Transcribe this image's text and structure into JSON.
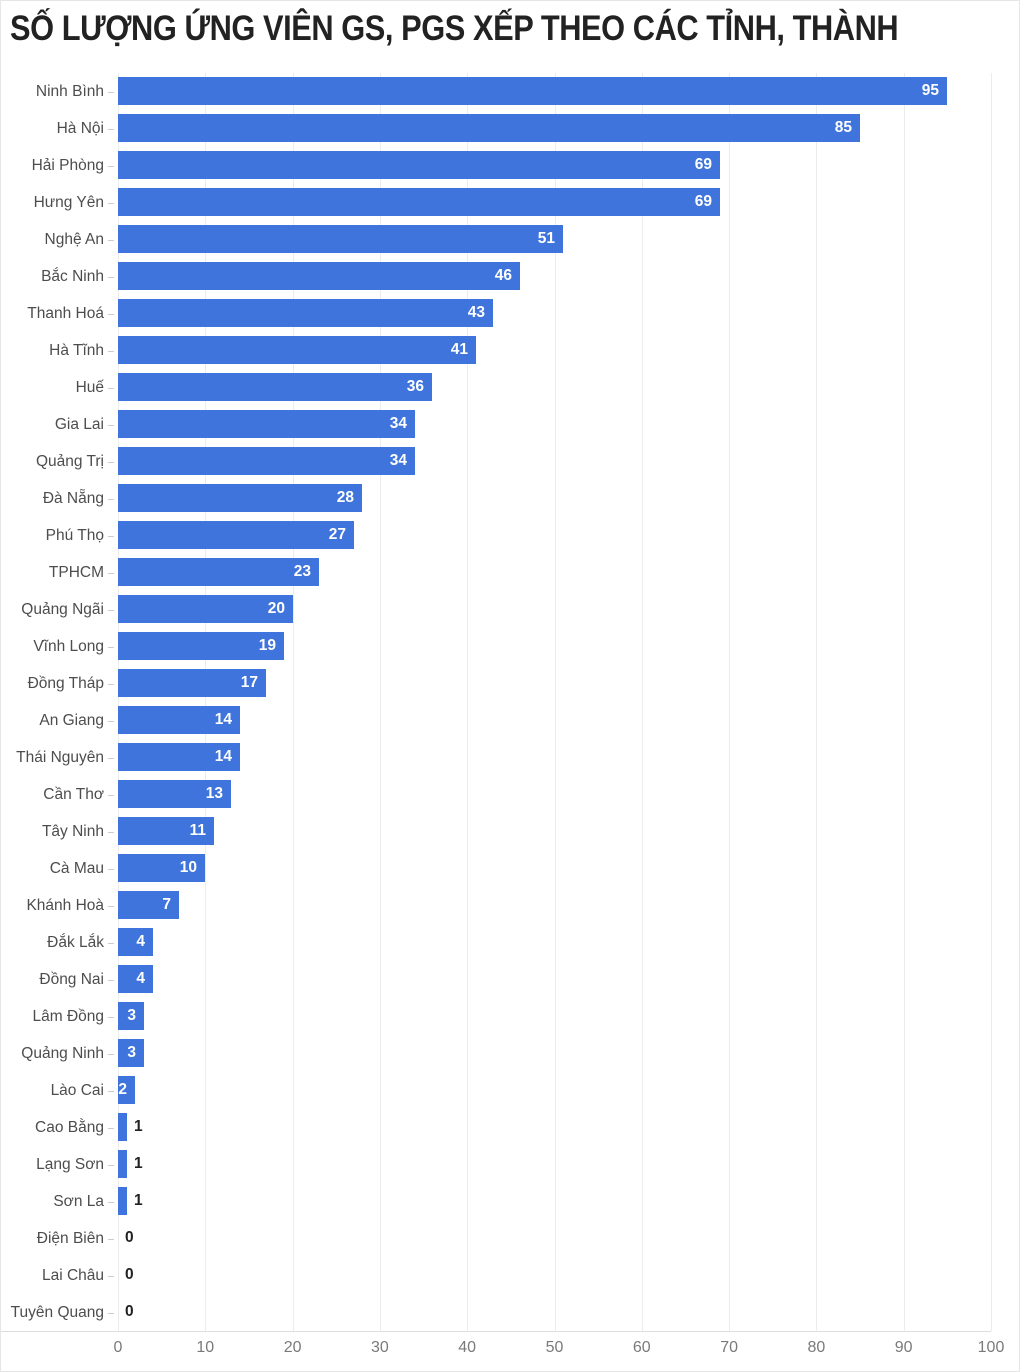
{
  "chart": {
    "title": "SỐ LƯỢNG ỨNG VIÊN GS, PGS XẾP THEO CÁC TỈNH, THÀNH"
  },
  "chart_data": {
    "type": "bar",
    "orientation": "horizontal",
    "title": "SỐ LƯỢNG ỨNG VIÊN GS, PGS XẾP THEO CÁC TỈNH, THÀNH",
    "categories": [
      "Ninh Bình",
      "Hà Nội",
      "Hải Phòng",
      "Hưng Yên",
      "Nghệ An",
      "Bắc Ninh",
      "Thanh Hoá",
      "Hà Tĩnh",
      "Huế",
      "Gia Lai",
      "Quảng Trị",
      "Đà Nẵng",
      "Phú Thọ",
      "TPHCM",
      "Quảng Ngãi",
      "Vĩnh Long",
      "Đồng Tháp",
      "An Giang",
      "Thái Nguyên",
      "Cần Thơ",
      "Tây Ninh",
      "Cà Mau",
      "Khánh Hoà",
      "Đắk Lắk",
      "Đồng Nai",
      "Lâm Đồng",
      "Quảng Ninh",
      "Lào Cai",
      "Cao Bằng",
      "Lạng Sơn",
      "Sơn La",
      "Điện Biên",
      "Lai Châu",
      "Tuyên Quang"
    ],
    "values": [
      95,
      85,
      69,
      69,
      51,
      46,
      43,
      41,
      36,
      34,
      34,
      28,
      27,
      23,
      20,
      19,
      17,
      14,
      14,
      13,
      11,
      10,
      7,
      4,
      4,
      3,
      3,
      2,
      1,
      1,
      1,
      0,
      0,
      0
    ],
    "xlabel": "",
    "ylabel": "",
    "xlim": [
      0,
      100
    ],
    "x_ticks": [
      0,
      10,
      20,
      30,
      40,
      50,
      60,
      70,
      80,
      90,
      100
    ],
    "grid": true,
    "legend": "none",
    "value_labels": "shown",
    "colors": {
      "bar": "#3e74dc",
      "value_inside": "#ffffff",
      "value_outside": "#222222",
      "row_label": "#4d4d4d",
      "axis_tick_label": "#7a7a7a",
      "gridline": "#ececec",
      "title": "#222222",
      "background": "#ffffff"
    }
  }
}
